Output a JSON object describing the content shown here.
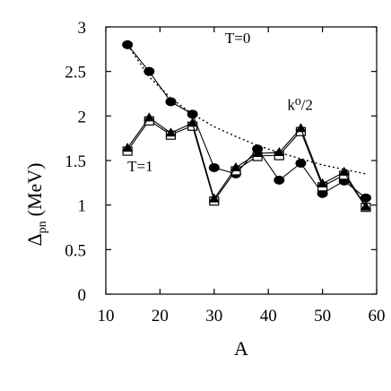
{
  "chart_data": {
    "type": "line",
    "xlabel": "A",
    "ylabel_main": "Δ",
    "ylabel_sub": "pn",
    "ylabel_unit": "(MeV)",
    "xlim": [
      10,
      60
    ],
    "ylim": [
      0,
      3
    ],
    "xticks": [
      10,
      20,
      30,
      40,
      50,
      60
    ],
    "yticks": [
      0,
      0.5,
      1,
      1.5,
      2,
      2.5,
      3
    ],
    "ytick_labels": [
      "0",
      "0.5",
      "1",
      "1.5",
      "2",
      "2.5",
      "3"
    ],
    "grid": false,
    "annotations": [
      {
        "text": "T=0",
        "x": 32,
        "y": 2.82
      },
      {
        "text": "k⁰/2",
        "x": 43.5,
        "y": 2.07
      },
      {
        "text": "T=1",
        "x": 14,
        "y": 1.38
      }
    ],
    "series": [
      {
        "marker": "circle-filled",
        "line": "solid",
        "x": [
          14,
          18,
          22,
          26,
          30,
          34,
          38,
          42,
          46,
          50,
          54,
          58
        ],
        "y": [
          2.8,
          2.5,
          2.16,
          2.02,
          1.42,
          1.35,
          1.63,
          1.28,
          1.47,
          1.13,
          1.27,
          1.08
        ]
      },
      {
        "marker": "triangle-filled",
        "line": "solid",
        "x": [
          14,
          18,
          22,
          26,
          30,
          34,
          38,
          42,
          46,
          50,
          54,
          58
        ],
        "y": [
          1.64,
          1.98,
          1.81,
          1.92,
          1.07,
          1.42,
          1.58,
          1.59,
          1.86,
          1.24,
          1.37,
          0.98
        ]
      },
      {
        "marker": "square-open",
        "line": "solid",
        "x": [
          14,
          18,
          22,
          26,
          30,
          34,
          38,
          42,
          46,
          50,
          54,
          58
        ],
        "y": [
          1.61,
          1.95,
          1.79,
          1.89,
          1.05,
          1.39,
          1.55,
          1.56,
          1.83,
          1.21,
          1.34,
          0.98
        ]
      },
      {
        "marker": "none",
        "line": "dotted",
        "x": [
          14,
          18,
          22,
          26,
          30,
          34,
          38,
          42,
          46,
          50,
          54,
          58
        ],
        "y": [
          2.8,
          2.44,
          2.2,
          2.02,
          1.88,
          1.77,
          1.67,
          1.59,
          1.52,
          1.45,
          1.4,
          1.35
        ]
      }
    ]
  }
}
